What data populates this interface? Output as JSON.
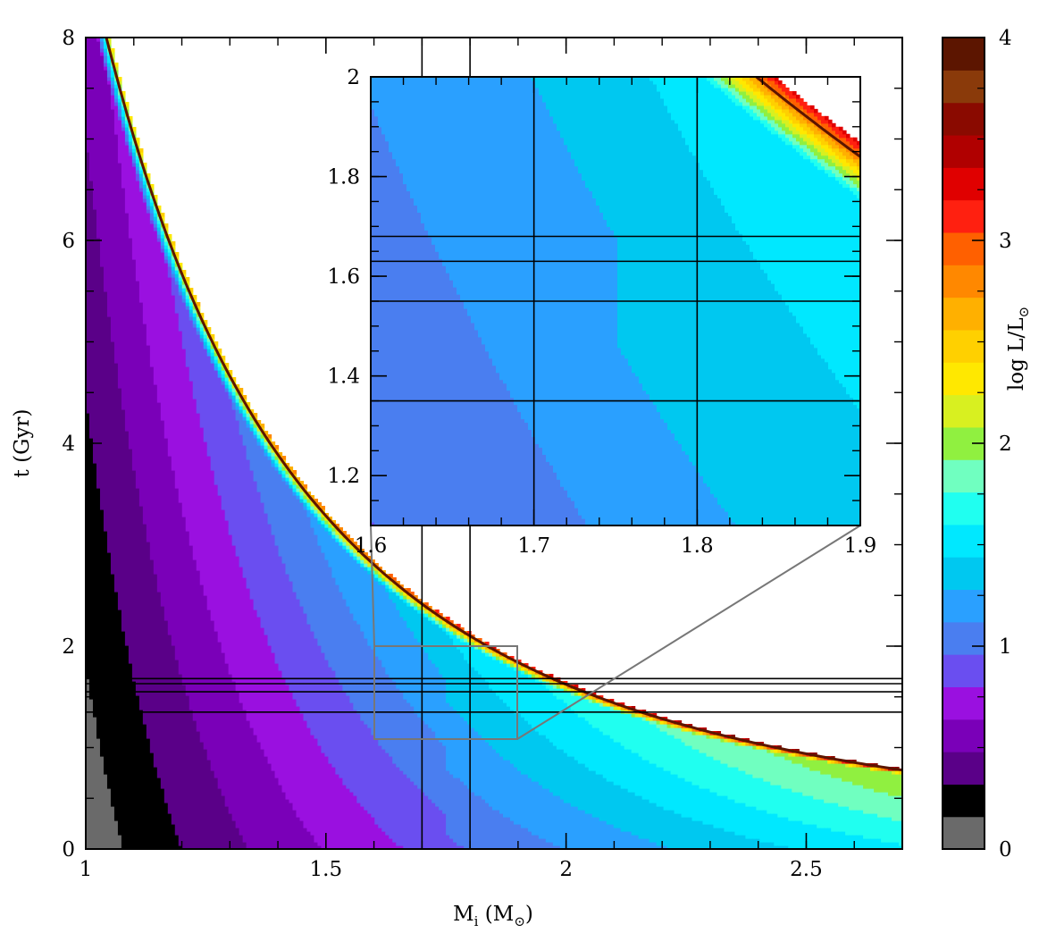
{
  "chart_data": [
    {
      "type": "heatmap",
      "xlabel": {
        "main": "M",
        "sub": "i",
        "rest": " (M",
        "sub2": "⊙",
        "close": ")"
      },
      "ylabel": "t (Gyr)",
      "xlim": [
        1.0,
        2.7
      ],
      "ylim": [
        0,
        8
      ],
      "xticks": [
        {
          "v": 1,
          "label": "1"
        },
        {
          "v": 1.5,
          "label": "1.5"
        },
        {
          "v": 2,
          "label": "2"
        },
        {
          "v": 2.5,
          "label": "2.5"
        }
      ],
      "yticks": [
        {
          "v": 0,
          "label": "0"
        },
        {
          "v": 2,
          "label": "2"
        },
        {
          "v": 4,
          "label": "4"
        },
        {
          "v": 6,
          "label": "6"
        },
        {
          "v": 8,
          "label": "8"
        }
      ],
      "vertical_lines": [
        1.7,
        1.8
      ],
      "horizontal_lines": [
        1.35,
        1.55,
        1.63,
        1.68
      ],
      "zoom_box": {
        "x": [
          1.6,
          1.9
        ],
        "y": [
          1.1,
          2.0
        ]
      },
      "tip_curve": {
        "t0": 9.0,
        "exp": 2.45
      },
      "kink_mass": 1.75
    },
    {
      "type": "heatmap",
      "role": "inset",
      "xlim": [
        1.6,
        1.9
      ],
      "ylim": [
        1.1,
        2.0
      ],
      "xticks": [
        {
          "v": 1.6,
          "label": "1.6"
        },
        {
          "v": 1.7,
          "label": "1.7"
        },
        {
          "v": 1.8,
          "label": "1.8"
        },
        {
          "v": 1.9,
          "label": "1.9"
        }
      ],
      "yticks": [
        {
          "v": 1.2,
          "label": "1.2"
        },
        {
          "v": 1.4,
          "label": "1.4"
        },
        {
          "v": 1.6,
          "label": "1.6"
        },
        {
          "v": 1.8,
          "label": "1.8"
        },
        {
          "v": 2.0,
          "label": "2"
        }
      ],
      "vertical_lines": [
        1.7,
        1.8
      ],
      "horizontal_lines": [
        1.35,
        1.55,
        1.63,
        1.68
      ]
    },
    {
      "type": "colorbar",
      "label": "log L/L",
      "label_sub": "⊙",
      "range": [
        0,
        4
      ],
      "ticks": [
        {
          "v": 0,
          "label": "0"
        },
        {
          "v": 1,
          "label": "1"
        },
        {
          "v": 2,
          "label": "2"
        },
        {
          "v": 3,
          "label": "3"
        },
        {
          "v": 4,
          "label": "4"
        }
      ],
      "colors": [
        "#6a6a6a",
        "#000000",
        "#5a0088",
        "#7a00b8",
        "#9a10e0",
        "#6a4ef0",
        "#4a7ef0",
        "#2aa0ff",
        "#00c8f0",
        "#00e8ff",
        "#20fff0",
        "#70ffc0",
        "#90f040",
        "#d8f020",
        "#ffe800",
        "#ffd000",
        "#ffb000",
        "#ff8800",
        "#ff6000",
        "#ff2010",
        "#e00000",
        "#b00000",
        "#8a0a00",
        "#8a3a0a",
        "#5c1500"
      ]
    }
  ]
}
